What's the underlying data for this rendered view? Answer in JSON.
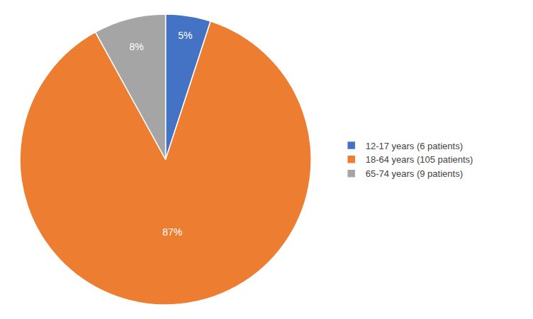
{
  "chart_data": {
    "type": "pie",
    "categories": [
      "12-17 years (6 patients)",
      "18-64 years (105 patients)",
      "65-74 years (9 patients)"
    ],
    "values": [
      5,
      87,
      8
    ],
    "value_labels": [
      "5%",
      "87%",
      "8%"
    ],
    "colors": [
      "#4472C4",
      "#ED7D31",
      "#A5A5A5"
    ],
    "data_labels": true,
    "legend": "right"
  }
}
